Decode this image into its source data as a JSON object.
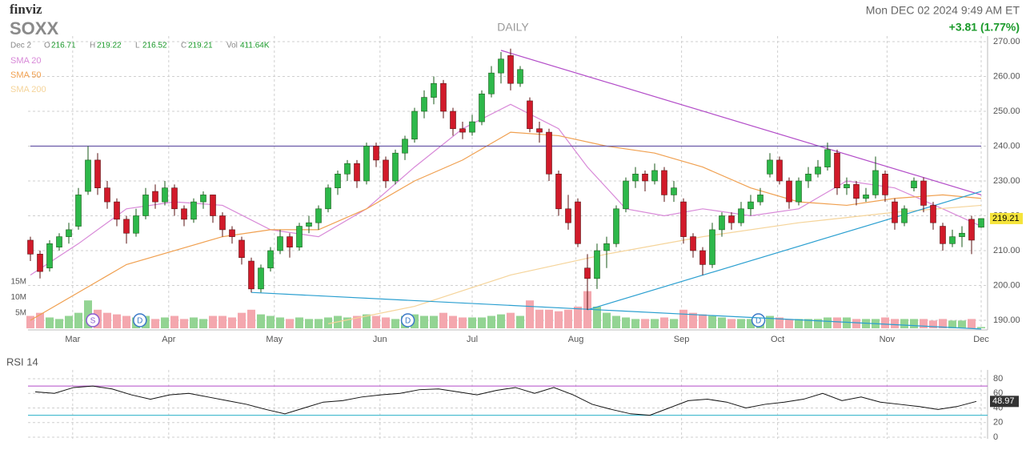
{
  "chart_data": {
    "type": "candlestick",
    "brand": "finviz",
    "ticker": "SOXX",
    "timeframe": "DAILY",
    "datetime": "Mon DEC 02 2024 9:49 AM ET",
    "change": "+3.81 (1.77%)",
    "last_date": "Dec 2",
    "ohlc_letters": [
      "O",
      "H",
      "L",
      "C"
    ],
    "vol_text": "Vol",
    "vol_last_label": "411.64K",
    "up_color": "#2db84a",
    "down_color": "#d11a2a",
    "ylim": [
      190,
      270
    ],
    "yticks": [
      {
        "value": 190,
        "label": "190.00"
      },
      {
        "value": 200,
        "label": "200.00"
      },
      {
        "value": 210,
        "label": "210.00"
      },
      {
        "value": 220,
        "label": "220.00"
      },
      {
        "value": 230,
        "label": "230.00"
      },
      {
        "value": 240,
        "label": "240.00"
      },
      {
        "value": 250,
        "label": "250.00"
      },
      {
        "value": 260,
        "label": "260.00"
      },
      {
        "value": 270,
        "label": "270.00"
      }
    ],
    "grid": true,
    "months": [
      {
        "label": "Mar",
        "at": 4.4
      },
      {
        "label": "Apr",
        "at": 14.4
      },
      {
        "label": "May",
        "at": 25.4
      },
      {
        "label": "Jun",
        "at": 36.4
      },
      {
        "label": "Jul",
        "at": 46
      },
      {
        "label": "Aug",
        "at": 56.8
      },
      {
        "label": "Sep",
        "at": 67.8
      },
      {
        "label": "Oct",
        "at": 77.8
      },
      {
        "label": "Nov",
        "at": 89.2
      },
      {
        "label": "Dec",
        "at": 99
      }
    ],
    "candles": [
      [
        213,
        214,
        207,
        209
      ],
      [
        209,
        210,
        202,
        204
      ],
      [
        205,
        213,
        204,
        212
      ],
      [
        211,
        215,
        210,
        214
      ],
      [
        214,
        218,
        212,
        216
      ],
      [
        217,
        228,
        216,
        226
      ],
      [
        227,
        240,
        226,
        236
      ],
      [
        236,
        238,
        226,
        228
      ],
      [
        228,
        230,
        222,
        224
      ],
      [
        224,
        225,
        217,
        219
      ],
      [
        219,
        220,
        212,
        215
      ],
      [
        215,
        222,
        214,
        220
      ],
      [
        220,
        228,
        219,
        226
      ],
      [
        227,
        229,
        222,
        224
      ],
      [
        224,
        230,
        223,
        228
      ],
      [
        228,
        229,
        220,
        222
      ],
      [
        222,
        223,
        217,
        219
      ],
      [
        219,
        225,
        218,
        224
      ],
      [
        224,
        227,
        222,
        226
      ],
      [
        226,
        226,
        218,
        220
      ],
      [
        220,
        221,
        214,
        216
      ],
      [
        216,
        217,
        212,
        214
      ],
      [
        213,
        214,
        206,
        208
      ],
      [
        207,
        208,
        198,
        199
      ],
      [
        199,
        206,
        198,
        205
      ],
      [
        205,
        211,
        204,
        210
      ],
      [
        210,
        216,
        209,
        214
      ],
      [
        214,
        215,
        208,
        211
      ],
      [
        211,
        218,
        210,
        217
      ],
      [
        217,
        220,
        215,
        218
      ],
      [
        218,
        223,
        216,
        222
      ],
      [
        222,
        229,
        221,
        228
      ],
      [
        228,
        233,
        226,
        232
      ],
      [
        232,
        236,
        230,
        235
      ],
      [
        235,
        236,
        228,
        230
      ],
      [
        230,
        241,
        229,
        240
      ],
      [
        240,
        241,
        234,
        236
      ],
      [
        236,
        237,
        228,
        230
      ],
      [
        230,
        239,
        229,
        238
      ],
      [
        238,
        243,
        236,
        242
      ],
      [
        242,
        251,
        241,
        250
      ],
      [
        250,
        256,
        248,
        254
      ],
      [
        254,
        260,
        252,
        258
      ],
      [
        258,
        259,
        248,
        250
      ],
      [
        250,
        251,
        243,
        245
      ],
      [
        245,
        247,
        242,
        244
      ],
      [
        244,
        249,
        243,
        247
      ],
      [
        247,
        256,
        246,
        255
      ],
      [
        255,
        263,
        254,
        261
      ],
      [
        261,
        267,
        258,
        265
      ],
      [
        266,
        268,
        256,
        258
      ],
      [
        258,
        263,
        257,
        262
      ],
      [
        253,
        254,
        244,
        245
      ],
      [
        245,
        247,
        241,
        244
      ],
      [
        244,
        245,
        230,
        232
      ],
      [
        232,
        233,
        220,
        222
      ],
      [
        222,
        226,
        216,
        218
      ],
      [
        224,
        225,
        211,
        212
      ],
      [
        205,
        209,
        193,
        202
      ],
      [
        202,
        212,
        199,
        210
      ],
      [
        210,
        214,
        205,
        212
      ],
      [
        212,
        223,
        211,
        222
      ],
      [
        222,
        231,
        221,
        230
      ],
      [
        230,
        234,
        228,
        232
      ],
      [
        232,
        233,
        227,
        230
      ],
      [
        230,
        235,
        229,
        233
      ],
      [
        233,
        234,
        224,
        226
      ],
      [
        226,
        230,
        224,
        228
      ],
      [
        224,
        225,
        212,
        214
      ],
      [
        214,
        215,
        208,
        210
      ],
      [
        210,
        211,
        203,
        206
      ],
      [
        206,
        218,
        205,
        216
      ],
      [
        216,
        221,
        214,
        220
      ],
      [
        220,
        221,
        216,
        218
      ],
      [
        218,
        224,
        217,
        222
      ],
      [
        222,
        226,
        220,
        224
      ],
      [
        224,
        228,
        223,
        226
      ],
      [
        232,
        238,
        231,
        236
      ],
      [
        236,
        237,
        229,
        230
      ],
      [
        230,
        231,
        222,
        224
      ],
      [
        224,
        231,
        223,
        230
      ],
      [
        230,
        234,
        228,
        232
      ],
      [
        232,
        236,
        231,
        234
      ],
      [
        234,
        241,
        233,
        239
      ],
      [
        238,
        239,
        226,
        228
      ],
      [
        228,
        231,
        226,
        229
      ],
      [
        229,
        230,
        223,
        225
      ],
      [
        225,
        228,
        224,
        226
      ],
      [
        226,
        237,
        225,
        233
      ],
      [
        232,
        233,
        224,
        226
      ],
      [
        224,
        225,
        216,
        218
      ],
      [
        218,
        223,
        217,
        222
      ],
      [
        228,
        231,
        227,
        230
      ],
      [
        230,
        231,
        221,
        223
      ],
      [
        223,
        224,
        216,
        218
      ],
      [
        217,
        218,
        210,
        212
      ],
      [
        212,
        216,
        211,
        214
      ],
      [
        214,
        217,
        211,
        215
      ],
      [
        219,
        220,
        209,
        213
      ],
      [
        216.71,
        219.22,
        216.52,
        219.21
      ]
    ],
    "volume": {
      "ylim": [
        0,
        15
      ],
      "yticks": [
        {
          "value": 5,
          "label": "5M"
        },
        {
          "value": 10,
          "label": "10M"
        },
        {
          "value": 15,
          "label": "15M"
        }
      ],
      "up_color": "#93d493",
      "down_color": "#f4a7ae",
      "values": [
        4,
        5,
        3.5,
        3,
        4,
        5,
        9,
        6,
        5,
        4.5,
        4,
        3.5,
        4,
        3,
        3.5,
        4,
        3,
        3.5,
        3,
        4,
        4,
        3.5,
        5,
        6,
        4.5,
        4,
        3.5,
        3,
        3.5,
        3,
        3,
        3.5,
        4,
        3.5,
        4,
        4.5,
        4,
        3.5,
        3,
        4,
        4.5,
        4,
        4,
        5,
        4,
        3.5,
        3.5,
        3.5,
        4,
        4.5,
        5,
        4,
        9,
        6,
        6,
        5.5,
        6,
        7,
        12,
        7,
        5,
        4,
        3.5,
        3,
        3,
        3,
        3.5,
        3,
        6,
        5,
        4.5,
        4,
        3.5,
        3,
        3,
        3,
        3,
        4,
        3.5,
        3,
        3,
        3,
        3,
        3.5,
        3.5,
        3.5,
        3,
        3,
        3,
        3.5,
        3,
        3,
        3,
        3,
        2.5,
        3,
        2.5,
        2.5,
        3,
        0.41164
      ]
    },
    "events": [
      {
        "label": "S",
        "at": 6.5
      },
      {
        "label": "D",
        "at": 11.4
      },
      {
        "label": "D",
        "at": 39.3
      },
      {
        "label": "D",
        "at": 75.8
      }
    ],
    "sma": [
      {
        "name": "SMA 20",
        "color": "#d889d8",
        "x": [
          0,
          5,
          10,
          15,
          20,
          25,
          30,
          35,
          40,
          45,
          50,
          55,
          58,
          62,
          66,
          70,
          75,
          80,
          85,
          90,
          95,
          99
        ],
        "values": [
          203,
          212,
          222,
          224,
          223,
          216,
          214,
          222,
          234,
          245,
          252,
          245,
          234,
          222,
          220,
          222,
          220,
          222,
          230,
          228,
          222,
          217
        ]
      },
      {
        "name": "SMA 50",
        "color": "#f0a050",
        "x": [
          0,
          10,
          20,
          25,
          30,
          35,
          40,
          45,
          50,
          55,
          60,
          65,
          70,
          75,
          80,
          85,
          90,
          95,
          99
        ],
        "values": [
          190,
          206,
          214,
          216,
          216,
          222,
          230,
          236,
          244,
          243,
          240,
          238,
          234,
          228,
          224,
          223,
          225,
          226,
          225
        ]
      },
      {
        "name": "SMA 200",
        "color": "#f5d49a",
        "x": [
          31,
          40,
          50,
          60,
          70,
          80,
          90,
          99
        ],
        "values": [
          189,
          194,
          203,
          209,
          214,
          218,
          221,
          223
        ]
      }
    ],
    "trendlines": [
      {
        "color": "#b24bc8",
        "from": [
          49,
          267.5
        ],
        "to": [
          99,
          226
        ]
      },
      {
        "color": "#2a9fd0",
        "from": [
          23,
          198
        ],
        "to": [
          99,
          187.5
        ]
      },
      {
        "color": "#2a9fd0",
        "from": [
          58,
          193
        ],
        "to": [
          99,
          227
        ]
      },
      {
        "color": "#6a5aa8",
        "from": [
          0,
          240
        ],
        "to": [
          99,
          240
        ]
      }
    ],
    "rsi": {
      "title": "RSI 14",
      "color": "#111111",
      "ylim": [
        0,
        80
      ],
      "yticks": [
        0,
        20,
        40,
        60,
        80
      ],
      "upper": 70,
      "lower": 30,
      "upper_color": "#b24bc8",
      "lower_color": "#2ab0c8",
      "values": [
        62,
        60,
        68,
        70,
        66,
        58,
        52,
        58,
        60,
        55,
        50,
        45,
        38,
        32,
        40,
        48,
        50,
        55,
        58,
        60,
        65,
        66,
        62,
        58,
        64,
        68,
        60,
        68,
        58,
        45,
        38,
        32,
        30,
        40,
        50,
        52,
        48,
        40,
        45,
        48,
        52,
        60,
        50,
        55,
        48,
        45,
        42,
        38,
        42,
        48.97
      ]
    }
  }
}
